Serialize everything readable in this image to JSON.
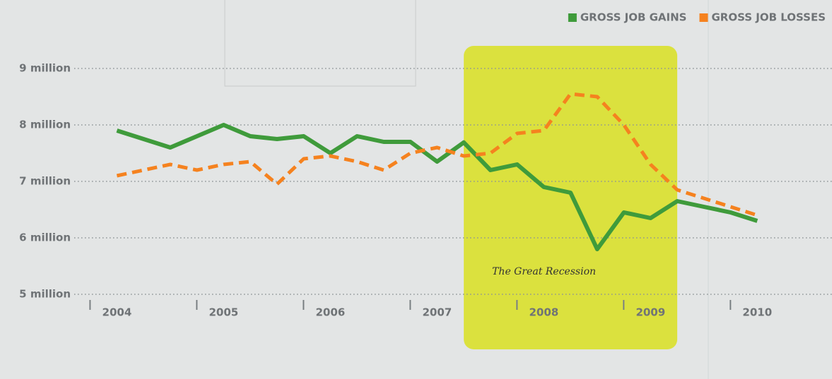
{
  "chart_data": {
    "type": "line",
    "x": [
      2004,
      2004.25,
      2004.5,
      2004.75,
      2005,
      2005.25,
      2005.5,
      2005.75,
      2006,
      2006.25,
      2006.5,
      2006.75,
      2007,
      2007.25,
      2007.5,
      2007.75,
      2008,
      2008.25,
      2008.5,
      2008.75,
      2009,
      2009.25,
      2009.5,
      2009.75,
      2010
    ],
    "series": [
      {
        "name": "GROSS JOB GAINS",
        "color": "#3f9b3b",
        "values": [
          7.9,
          7.75,
          7.6,
          7.8,
          8.0,
          7.8,
          7.75,
          7.8,
          7.5,
          7.8,
          7.7,
          7.7,
          7.35,
          7.69,
          7.2,
          7.3,
          6.9,
          6.8,
          5.8,
          6.45,
          6.35,
          6.65,
          6.55,
          6.45,
          6.3
        ]
      },
      {
        "name": "GROSS JOB LOSSES",
        "color": "#f5821f",
        "values": [
          7.1,
          7.2,
          7.3,
          7.2,
          7.3,
          7.35,
          6.95,
          7.4,
          7.45,
          7.35,
          7.2,
          7.5,
          7.6,
          7.45,
          7.5,
          7.85,
          7.9,
          8.55,
          8.5,
          8.0,
          7.3,
          6.85,
          6.7,
          6.55,
          6.4
        ]
      }
    ],
    "xlim": [
      2003.6,
      2010.7
    ],
    "xticks": [
      2004,
      2005,
      2006,
      2007,
      2008,
      2009,
      2010
    ],
    "ylim": [
      5,
      10.2
    ],
    "yticks": [
      {
        "value": 5,
        "label": "5 million"
      },
      {
        "value": 6,
        "label": "6 million"
      },
      {
        "value": 7,
        "label": "7 million"
      },
      {
        "value": 8,
        "label": "8 million"
      },
      {
        "value": 9,
        "label": "9 million"
      }
    ],
    "grid": true,
    "legend": "top-right",
    "highlight": {
      "range": [
        2007.25,
        2009.25
      ],
      "color": "#d9e021",
      "label": "The Great Recession"
    }
  }
}
